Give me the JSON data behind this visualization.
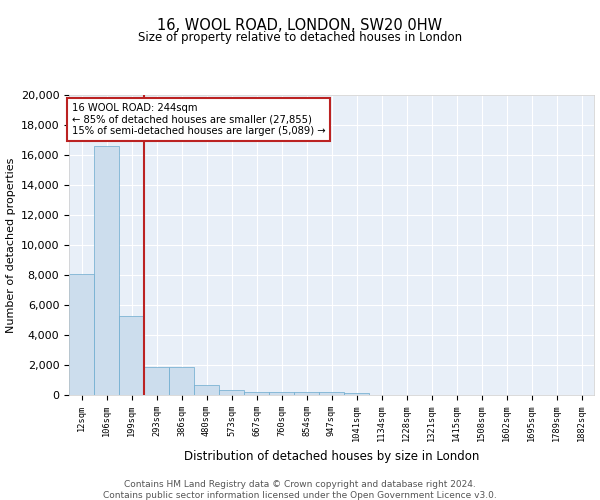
{
  "title": "16, WOOL ROAD, LONDON, SW20 0HW",
  "subtitle": "Size of property relative to detached houses in London",
  "xlabel": "Distribution of detached houses by size in London",
  "ylabel": "Number of detached properties",
  "footnote1": "Contains HM Land Registry data © Crown copyright and database right 2024.",
  "footnote2": "Contains public sector information licensed under the Open Government Licence v3.0.",
  "annotation_line1": "16 WOOL ROAD: 244sqm",
  "annotation_line2": "← 85% of detached houses are smaller (27,855)",
  "annotation_line3": "15% of semi-detached houses are larger (5,089) →",
  "bar_color": "#ccdded",
  "bar_edge_color": "#6aaace",
  "vline_color": "#bb2222",
  "annotation_box_color": "#bb2222",
  "categories": [
    "12sqm",
    "106sqm",
    "199sqm",
    "293sqm",
    "386sqm",
    "480sqm",
    "573sqm",
    "667sqm",
    "760sqm",
    "854sqm",
    "947sqm",
    "1041sqm",
    "1134sqm",
    "1228sqm",
    "1321sqm",
    "1415sqm",
    "1508sqm",
    "1602sqm",
    "1695sqm",
    "1789sqm",
    "1882sqm"
  ],
  "values": [
    8100,
    16600,
    5300,
    1850,
    1850,
    700,
    330,
    230,
    220,
    200,
    170,
    140,
    0,
    0,
    0,
    0,
    0,
    0,
    0,
    0,
    0
  ],
  "ylim": [
    0,
    20000
  ],
  "yticks": [
    0,
    2000,
    4000,
    6000,
    8000,
    10000,
    12000,
    14000,
    16000,
    18000,
    20000
  ],
  "background_color": "#e8eff8",
  "fig_background": "#ffffff",
  "grid_color": "#ffffff"
}
